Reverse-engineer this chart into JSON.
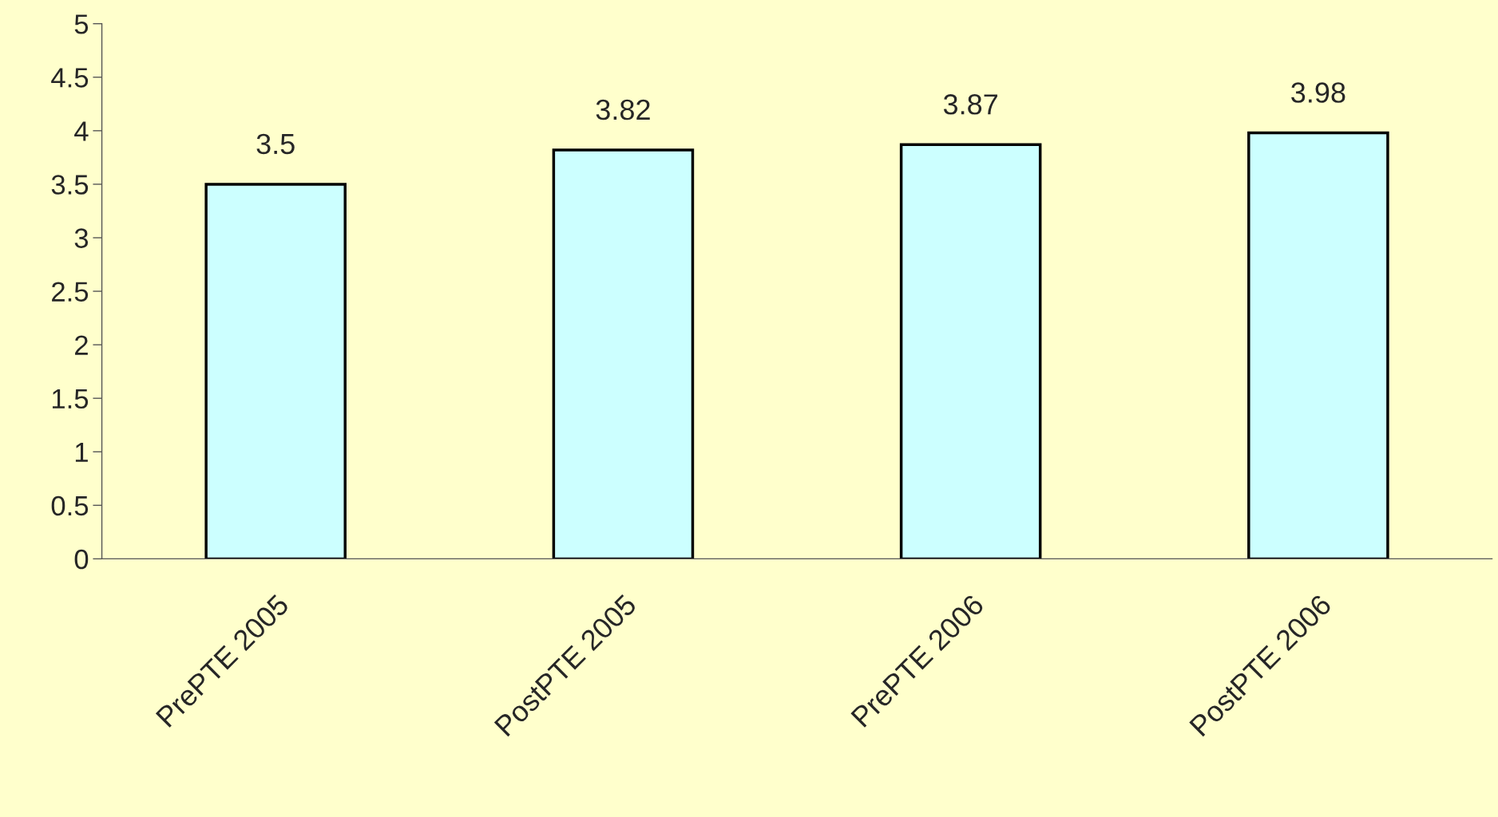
{
  "chart_data": {
    "type": "bar",
    "categories": [
      "PrePTE 2005",
      "PostPTE 2005",
      "PrePTE 2006",
      "PostPTE 2006"
    ],
    "values": [
      3.5,
      3.82,
      3.87,
      3.98
    ],
    "color": "#ccffff",
    "ylim": [
      0,
      5
    ],
    "yticks": [
      0,
      0.5,
      1,
      1.5,
      2,
      2.5,
      3,
      3.5,
      4,
      4.5,
      5
    ],
    "grid": false,
    "legend": false,
    "data_labels": true
  }
}
